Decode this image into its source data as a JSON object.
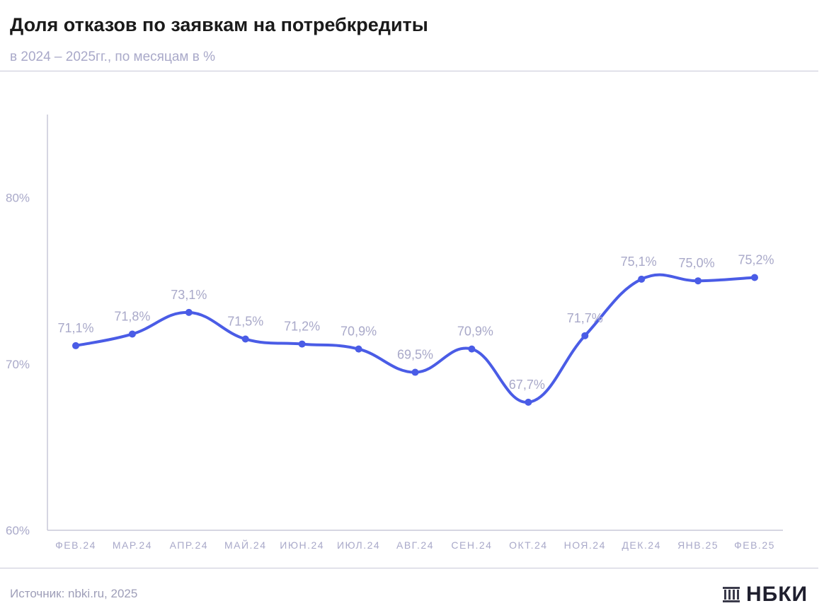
{
  "header": {
    "title": "Доля отказов по заявкам на потребкредиты",
    "subtitle": "в 2024 – 2025гг., по месяцам в %"
  },
  "footer": {
    "source": "Источник: nbki.ru, 2025",
    "logo_text": "НБКИ",
    "logo_icon": "building-columns-icon"
  },
  "colors": {
    "line": "#4a5ce6",
    "label": "#a9a9c9",
    "axis": "#c8c8d8"
  },
  "chart_data": {
    "type": "line",
    "title": "Доля отказов по заявкам на потребкредиты",
    "subtitle": "в 2024 – 2025гг., по месяцам в %",
    "categories": [
      "ФЕВ.24",
      "МАР.24",
      "АПР.24",
      "МАЙ.24",
      "ИЮН.24",
      "ИЮЛ.24",
      "АВГ.24",
      "СЕН.24",
      "ОКТ.24",
      "НОЯ.24",
      "ДЕК.24",
      "ЯНВ.25",
      "ФЕВ.25"
    ],
    "values": [
      71.1,
      71.8,
      73.1,
      71.5,
      71.2,
      70.9,
      69.5,
      70.9,
      67.7,
      71.7,
      75.1,
      75.0,
      75.2
    ],
    "data_labels": [
      "71,1%",
      "71,8%",
      "73,1%",
      "71,5%",
      "71,2%",
      "70,9%",
      "69,5%",
      "70,9%",
      "67,7%",
      "71,7%",
      "75,1%",
      "75,0%",
      "75,2%"
    ],
    "y_ticks": [
      60,
      70,
      80
    ],
    "y_tick_labels": [
      "60%",
      "70%",
      "80%"
    ],
    "ylim": [
      60,
      85
    ],
    "grid": false,
    "smooth": true,
    "legend": "none"
  }
}
